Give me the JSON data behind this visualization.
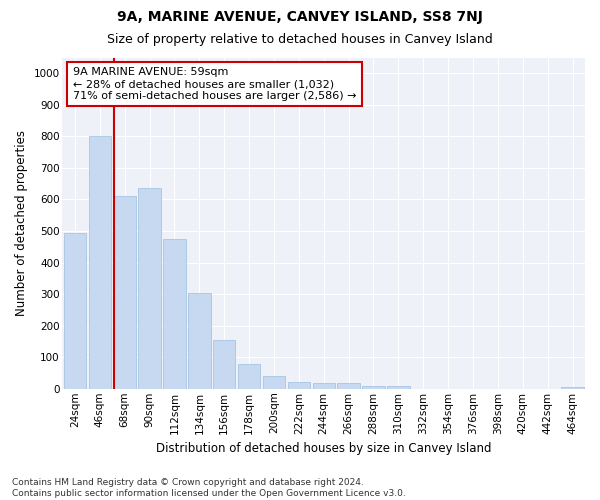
{
  "title": "9A, MARINE AVENUE, CANVEY ISLAND, SS8 7NJ",
  "subtitle": "Size of property relative to detached houses in Canvey Island",
  "xlabel": "Distribution of detached houses by size in Canvey Island",
  "ylabel": "Number of detached properties",
  "categories": [
    "24sqm",
    "46sqm",
    "68sqm",
    "90sqm",
    "112sqm",
    "134sqm",
    "156sqm",
    "178sqm",
    "200sqm",
    "222sqm",
    "244sqm",
    "266sqm",
    "288sqm",
    "310sqm",
    "332sqm",
    "354sqm",
    "376sqm",
    "398sqm",
    "420sqm",
    "442sqm",
    "464sqm"
  ],
  "values": [
    495,
    800,
    612,
    635,
    475,
    302,
    155,
    80,
    40,
    22,
    18,
    18,
    10,
    10,
    0,
    0,
    0,
    0,
    0,
    0,
    5
  ],
  "bar_color": "#c6d9f0",
  "bar_edge_color": "#9dbfe0",
  "vline_color": "#cc0000",
  "vline_x": 1.59,
  "annotation_text": "9A MARINE AVENUE: 59sqm\n← 28% of detached houses are smaller (1,032)\n71% of semi-detached houses are larger (2,586) →",
  "annotation_box_color": "#ffffff",
  "annotation_box_edge": "#cc0000",
  "ylim": [
    0,
    1050
  ],
  "yticks": [
    0,
    100,
    200,
    300,
    400,
    500,
    600,
    700,
    800,
    900,
    1000
  ],
  "footnote": "Contains HM Land Registry data © Crown copyright and database right 2024.\nContains public sector information licensed under the Open Government Licence v3.0.",
  "background_color": "#eef2f8",
  "title_fontsize": 10,
  "subtitle_fontsize": 9,
  "axis_label_fontsize": 8.5,
  "tick_fontsize": 7.5,
  "annotation_fontsize": 8,
  "footnote_fontsize": 6.5
}
